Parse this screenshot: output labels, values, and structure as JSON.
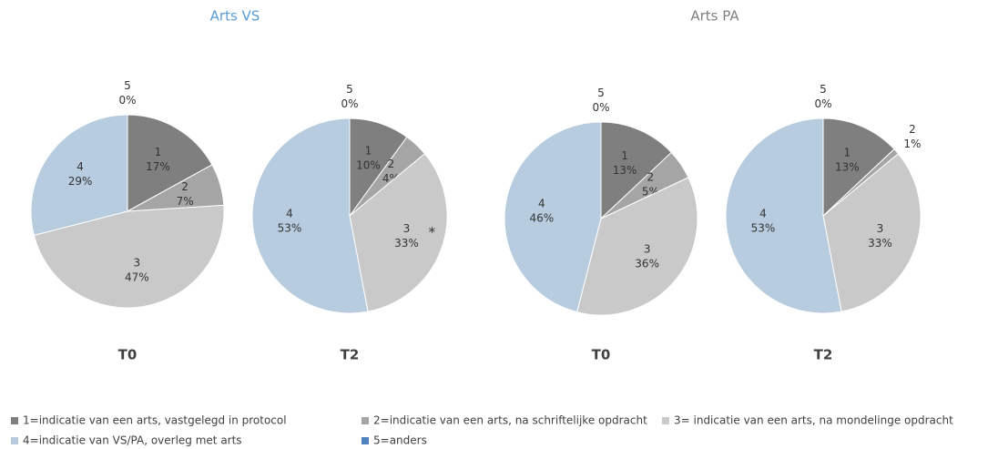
{
  "headings": [
    {
      "text": "Arts VS",
      "color": "#5b9bd5"
    },
    {
      "text": "Arts PA",
      "color": "#7f7f7f"
    }
  ],
  "chart_data": [
    {
      "type": "pie",
      "title": "T0",
      "categories": [
        "1",
        "2",
        "3",
        "4",
        "5"
      ],
      "values": [
        17,
        7,
        47,
        29,
        0
      ],
      "value_labels": [
        "17%",
        "7%",
        "47%",
        "29%",
        "0%"
      ],
      "colors": [
        "#7f7f7f",
        "#a5a5a5",
        "#c9c9c9",
        "#b8cce0",
        "#4f81bd"
      ]
    },
    {
      "type": "pie",
      "title": "T2",
      "categories": [
        "1",
        "2",
        "3",
        "4",
        "5"
      ],
      "values": [
        10,
        4,
        33,
        53,
        0
      ],
      "value_labels": [
        "10%",
        "4%",
        "33%",
        "53%",
        "0%"
      ],
      "colors": [
        "#7f7f7f",
        "#a5a5a5",
        "#c9c9c9",
        "#b8cce0",
        "#4f81bd"
      ],
      "annotation": "*"
    },
    {
      "type": "pie",
      "title": "T0",
      "categories": [
        "1",
        "2",
        "3",
        "4",
        "5"
      ],
      "values": [
        13,
        5,
        36,
        46,
        0
      ],
      "value_labels": [
        "13%",
        "5%",
        "36%",
        "46%",
        "0%"
      ],
      "colors": [
        "#7f7f7f",
        "#a5a5a5",
        "#c9c9c9",
        "#b8cce0",
        "#4f81bd"
      ]
    },
    {
      "type": "pie",
      "title": "T2",
      "categories": [
        "1",
        "2",
        "3",
        "4",
        "5"
      ],
      "values": [
        13,
        1,
        33,
        53,
        0
      ],
      "value_labels": [
        "13%",
        "1%",
        "33%",
        "53%",
        "0%"
      ],
      "colors": [
        "#7f7f7f",
        "#a5a5a5",
        "#c9c9c9",
        "#b8cce0",
        "#4f81bd"
      ]
    }
  ],
  "legend": [
    "1=indicatie van een arts, vastgelegd in protocol",
    "2=indicatie van een arts, na schriftelijke opdracht",
    "3= indicatie van een arts, na mondelinge opdracht",
    "4=indicatie van VS/PA, overleg met arts",
    "5=anders"
  ]
}
